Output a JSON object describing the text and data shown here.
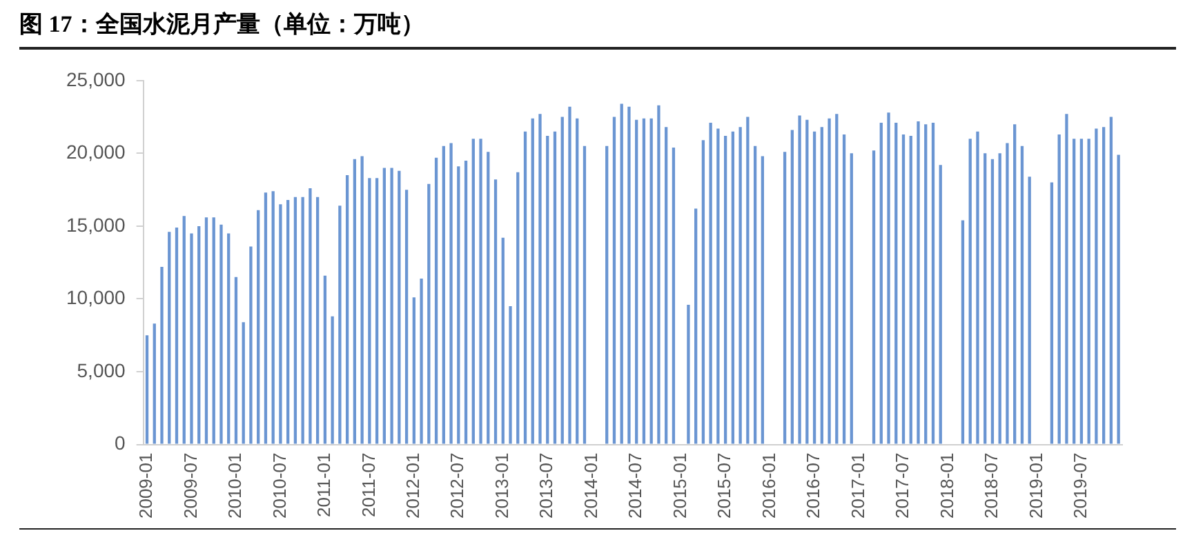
{
  "chart_data": {
    "type": "bar",
    "title": "图 17：全国水泥月产量（单位：万吨）",
    "categories": [
      "2009-01",
      null,
      null,
      null,
      null,
      null,
      "2009-07",
      null,
      null,
      null,
      null,
      null,
      "2010-01",
      null,
      null,
      null,
      null,
      null,
      "2010-07",
      null,
      null,
      null,
      null,
      null,
      "2011-01",
      null,
      null,
      null,
      null,
      null,
      "2011-07",
      null,
      null,
      null,
      null,
      null,
      "2012-01",
      null,
      null,
      null,
      null,
      null,
      "2012-07",
      null,
      null,
      null,
      null,
      null,
      "2013-01",
      null,
      null,
      null,
      null,
      null,
      "2013-07",
      null,
      null,
      null,
      null,
      null,
      "2014-01",
      null,
      null,
      null,
      null,
      null,
      "2014-07",
      null,
      null,
      null,
      null,
      null,
      "2015-01",
      null,
      null,
      null,
      null,
      null,
      "2015-07",
      null,
      null,
      null,
      null,
      null,
      "2016-01",
      null,
      null,
      null,
      null,
      null,
      "2016-07",
      null,
      null,
      null,
      null,
      null,
      "2017-01",
      null,
      null,
      null,
      null,
      null,
      "2017-07",
      null,
      null,
      null,
      null,
      null,
      "2018-01",
      null,
      null,
      null,
      null,
      null,
      "2018-07",
      null,
      null,
      null,
      null,
      null,
      "2019-01",
      null,
      null,
      null,
      null,
      null,
      "2019-07",
      null,
      null,
      null,
      null,
      null
    ],
    "values": [
      7500,
      8300,
      12200,
      14600,
      14900,
      15700,
      14500,
      15000,
      15600,
      15600,
      15100,
      14500,
      11500,
      8400,
      13600,
      16100,
      17300,
      17400,
      16500,
      16800,
      17000,
      17000,
      17600,
      17000,
      11600,
      8800,
      16400,
      18500,
      19600,
      19800,
      18300,
      18300,
      19000,
      19000,
      18800,
      17500,
      10100,
      11400,
      17900,
      19700,
      20500,
      20700,
      19100,
      19500,
      21000,
      21000,
      20100,
      18200,
      14200,
      9500,
      18700,
      21500,
      22400,
      22700,
      21200,
      21500,
      22500,
      23200,
      22400,
      20500,
      null,
      null,
      20500,
      22500,
      23400,
      23200,
      22300,
      22400,
      22400,
      23300,
      21800,
      20400,
      null,
      9600,
      16200,
      20900,
      22100,
      21700,
      21200,
      21500,
      21800,
      22500,
      20500,
      19800,
      null,
      null,
      20100,
      21600,
      22600,
      22300,
      21500,
      21800,
      22400,
      22700,
      21300,
      20000,
      null,
      null,
      20200,
      22100,
      22800,
      22100,
      21300,
      21200,
      22200,
      22000,
      22100,
      19200,
      null,
      null,
      15400,
      21000,
      21500,
      20000,
      19600,
      20000,
      20700,
      22000,
      20500,
      18400,
      null,
      null,
      18000,
      21300,
      22700,
      21000,
      21000,
      21000,
      21700,
      21800,
      22500,
      19900
    ],
    "color": "#6a95d2",
    "ylim": [
      0,
      25000
    ],
    "yticks": [
      {
        "value": 0,
        "label": "0"
      },
      {
        "value": 5000,
        "label": "5,000"
      },
      {
        "value": 10000,
        "label": "10,000"
      },
      {
        "value": 15000,
        "label": "15,000"
      },
      {
        "value": 20000,
        "label": "20,000"
      },
      {
        "value": 25000,
        "label": "25,000"
      }
    ]
  }
}
